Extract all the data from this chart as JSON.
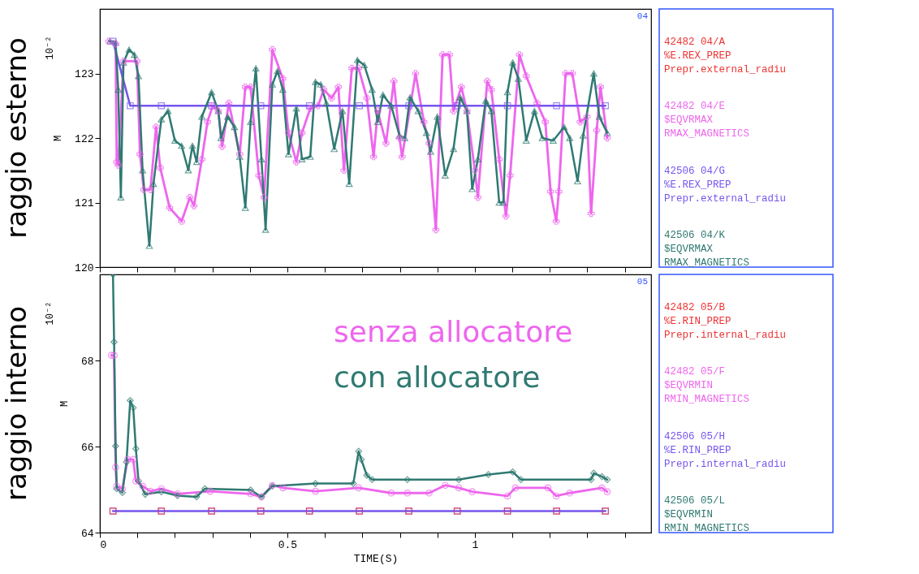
{
  "chart_data": [
    {
      "type": "line",
      "title": "raggio esterno",
      "ylabel": "M",
      "annotations": [
        "10⁻²",
        "04"
      ],
      "xlim": [
        0,
        1.47
      ],
      "xticks": [
        0,
        {
          "value": 0.1,
          "label": null
        },
        {
          "value": 0.2,
          "label": null
        },
        {
          "value": 0.3,
          "label": null
        },
        {
          "value": 0.4,
          "label": null
        },
        0.5,
        {
          "value": 0.6,
          "label": null
        },
        {
          "value": 0.7,
          "label": null
        },
        {
          "value": 0.8,
          "label": null
        },
        {
          "value": 0.9,
          "label": null
        },
        1,
        {
          "value": 1.1,
          "label": null
        },
        {
          "value": 1.2,
          "label": null
        },
        {
          "value": 1.3,
          "label": null
        },
        {
          "value": 1.4,
          "label": null
        }
      ],
      "ylim": [
        120,
        124
      ],
      "yticks": [
        120,
        121,
        122,
        123
      ],
      "tick_labels": "y",
      "grid": false,
      "legend": "right",
      "series": [
        {
          "name": "42482 04/A\n%E.REX_PREP\nPrepr.external_radiu",
          "color": "#ee3333"
        },
        {
          "name": "42482 04/E\n$EQVRMAX\nRMAX_MAGNETICS",
          "color": "#ee66ee",
          "marker": "cross",
          "x": [
            0.024,
            0.042,
            0.045,
            0.049,
            0.063,
            0.099,
            0.107,
            0.117,
            0.135,
            0.15,
            0.161,
            0.186,
            0.218,
            0.24,
            0.251,
            0.272,
            0.287,
            0.301,
            0.316,
            0.326,
            0.344,
            0.373,
            0.388,
            0.402,
            0.424,
            0.438,
            0.46,
            0.488,
            0.503,
            0.524,
            0.539,
            0.561,
            0.582,
            0.597,
            0.618,
            0.636,
            0.651,
            0.672,
            0.69,
            0.712,
            0.73,
            0.741,
            0.763,
            0.784,
            0.799,
            0.806,
            0.842,
            0.864,
            0.878,
            0.896,
            0.914,
            0.932,
            0.943,
            0.964,
            0.979,
            1.0,
            1.008,
            1.033,
            1.044,
            1.065,
            1.083,
            1.094,
            1.119,
            1.137,
            1.166,
            1.188,
            1.202,
            1.217,
            1.224,
            1.242,
            1.26,
            1.281,
            1.299,
            1.31,
            1.325,
            1.335,
            1.353
          ],
          "values": [
            123.5,
            123.46,
            121.63,
            121.58,
            123.19,
            123.19,
            121.75,
            121.2,
            121.2,
            122.17,
            121.54,
            120.92,
            120.71,
            121.08,
            120.95,
            121.67,
            122.25,
            122.5,
            122.42,
            121.87,
            122.54,
            121.75,
            122.79,
            122.79,
            121.42,
            121.08,
            123.37,
            122.92,
            122.08,
            121.63,
            122.08,
            122.46,
            122.5,
            122.75,
            122.62,
            122.79,
            121.5,
            123.08,
            123.08,
            122.62,
            121.71,
            122.42,
            121.92,
            122.88,
            122.0,
            121.71,
            123.0,
            122.25,
            121.92,
            120.58,
            123.29,
            123.29,
            122.42,
            122.79,
            122.42,
            121.5,
            121.08,
            122.88,
            122.75,
            121.67,
            120.79,
            121.42,
            123.29,
            122.96,
            122.54,
            122.25,
            121.17,
            120.71,
            121.17,
            123.0,
            123.0,
            122.25,
            122.33,
            120.83,
            122.12,
            122.79,
            122.0
          ]
        },
        {
          "name": "42506 04/G\n%E.REX_PREP\nPrepr.external_radiu",
          "color": "#7755ee",
          "marker": "square",
          "x": [
            0.035,
            0.081,
            0.164,
            0.298,
            0.429,
            0.559,
            0.692,
            0.824,
            0.953,
            1.087,
            1.218,
            1.348
          ],
          "values": [
            123.5,
            122.5,
            122.5,
            122.5,
            122.5,
            122.5,
            122.5,
            122.5,
            122.5,
            122.5,
            122.5,
            122.5
          ]
        },
        {
          "name": "42506 04/K\n$EQVRMAX\nRMAX_MAGNETICS",
          "color": "#2f7a72",
          "marker": "triangle",
          "x": [
            0.027,
            0.042,
            0.049,
            0.056,
            0.063,
            0.078,
            0.092,
            0.103,
            0.114,
            0.132,
            0.143,
            0.164,
            0.182,
            0.2,
            0.218,
            0.236,
            0.247,
            0.258,
            0.272,
            0.298,
            0.316,
            0.323,
            0.341,
            0.359,
            0.373,
            0.388,
            0.402,
            0.416,
            0.431,
            0.442,
            0.46,
            0.474,
            0.488,
            0.503,
            0.524,
            0.539,
            0.561,
            0.575,
            0.589,
            0.604,
            0.625,
            0.647,
            0.665,
            0.687,
            0.705,
            0.726,
            0.741,
            0.755,
            0.777,
            0.799,
            0.813,
            0.827,
            0.849,
            0.871,
            0.882,
            0.9,
            0.921,
            0.943,
            0.961,
            0.979,
            0.993,
            1.008,
            1.029,
            1.044,
            1.065,
            1.076,
            1.087,
            1.101,
            1.116,
            1.137,
            1.159,
            1.18,
            1.209,
            1.238,
            1.253,
            1.274,
            1.289,
            1.317,
            1.332,
            1.353
          ],
          "values": [
            123.5,
            123.48,
            122.75,
            121.08,
            123.17,
            123.37,
            123.29,
            122.96,
            121.5,
            120.33,
            121.29,
            122.29,
            122.42,
            121.96,
            121.88,
            121.5,
            121.88,
            121.63,
            122.33,
            122.71,
            122.42,
            122.0,
            122.33,
            122.17,
            121.71,
            120.92,
            122.25,
            123.08,
            121.67,
            120.58,
            122.83,
            123.04,
            122.75,
            121.75,
            122.46,
            121.67,
            121.71,
            122.87,
            122.83,
            122.54,
            121.83,
            122.42,
            121.29,
            123.21,
            123.13,
            122.75,
            122.25,
            122.67,
            122.5,
            122.04,
            122.0,
            122.63,
            122.42,
            122.08,
            121.79,
            122.33,
            121.42,
            121.83,
            122.63,
            122.42,
            121.21,
            121.67,
            122.58,
            122.42,
            121.0,
            121.0,
            122.71,
            123.17,
            122.92,
            121.96,
            122.42,
            122.0,
            121.96,
            122.17,
            122.0,
            121.33,
            122.04,
            123.0,
            122.33,
            122.08
          ]
        }
      ]
    },
    {
      "type": "line",
      "title": "raggio interno",
      "xlabel": "TIME(S)",
      "ylabel": "M",
      "annotations": [
        "10⁻²",
        "05",
        "senza allocatore",
        "con allocatore"
      ],
      "xlim": [
        0,
        1.47
      ],
      "xticks": [
        0,
        {
          "value": 0.1,
          "label": null
        },
        {
          "value": 0.2,
          "label": null
        },
        {
          "value": 0.3,
          "label": null
        },
        {
          "value": 0.4,
          "label": null
        },
        0.5,
        {
          "value": 0.6,
          "label": null
        },
        {
          "value": 0.7,
          "label": null
        },
        {
          "value": 0.8,
          "label": null
        },
        {
          "value": 0.9,
          "label": null
        },
        1,
        {
          "value": 1.1,
          "label": null
        },
        {
          "value": 1.2,
          "label": null
        },
        {
          "value": 1.3,
          "label": null
        },
        {
          "value": 1.4,
          "label": null
        }
      ],
      "ylim": [
        64,
        70
      ],
      "yticks": [
        64,
        66,
        68
      ],
      "grid": false,
      "legend": "right",
      "series": [
        {
          "name": "42482 05/B\n%E.RIN_PREP\nPrepr.internal_radiu",
          "color": "#ee3333",
          "type": "scatter",
          "marker": "square",
          "x": [
            0.035,
            0.164,
            0.298,
            0.429,
            0.559,
            0.692,
            0.824,
            0.953,
            1.087,
            1.218,
            1.348
          ],
          "values": [
            64.5,
            64.5,
            64.5,
            64.5,
            64.5,
            64.5,
            64.5,
            64.5,
            64.5,
            64.5,
            64.5
          ]
        },
        {
          "name": "42482 05/F\n$EQVRMIN\nRMIN_MAGNETICS",
          "color": "#ee66ee",
          "marker": "circle",
          "x": [
            0.031,
            0.038,
            0.042,
            0.045,
            0.06,
            0.074,
            0.089,
            0.096,
            0.114,
            0.135,
            0.164,
            0.207,
            0.294,
            0.402,
            0.431,
            0.46,
            0.488,
            0.575,
            0.69,
            0.777,
            0.82,
            0.878,
            0.921,
            0.957,
            0.993,
            1.087,
            1.108,
            1.195,
            1.217,
            1.253,
            1.339,
            1.353
          ],
          "values": [
            68.12,
            68.12,
            65.52,
            65.08,
            65.02,
            65.7,
            65.7,
            65.2,
            65.08,
            64.96,
            65.02,
            64.9,
            64.96,
            64.9,
            64.83,
            65.1,
            65.04,
            64.96,
            65.04,
            64.92,
            64.92,
            64.92,
            65.1,
            65.04,
            64.95,
            64.85,
            65.04,
            65.04,
            64.85,
            64.92,
            65.04,
            64.95
          ]
        },
        {
          "name": "42506 05/H\n%E.RIN_PREP\nPrepr.internal_radiu",
          "color": "#7755ee",
          "marker": "square",
          "x": [
            0.035,
            0.164,
            0.298,
            0.429,
            0.559,
            0.692,
            0.824,
            0.953,
            1.087,
            1.218,
            1.348
          ],
          "values": [
            64.5,
            64.5,
            64.5,
            64.5,
            64.5,
            64.5,
            64.5,
            64.5,
            64.5,
            64.5,
            64.5
          ]
        },
        {
          "name": "42506 05/L\n$EQVRMIN\nRMIN_MAGNETICS",
          "color": "#2f7a72",
          "marker": "diamond",
          "x": [
            0.035,
            0.038,
            0.042,
            0.045,
            0.06,
            0.071,
            0.081,
            0.089,
            0.096,
            0.103,
            0.121,
            0.164,
            0.207,
            0.258,
            0.28,
            0.402,
            0.431,
            0.46,
            0.575,
            0.676,
            0.69,
            0.697,
            0.712,
            0.726,
            0.82,
            0.957,
            1.036,
            1.101,
            1.123,
            1.31,
            1.317,
            1.339,
            1.353
          ],
          "values": [
            70,
            68.43,
            66.01,
            65.02,
            64.93,
            65.64,
            67.07,
            66.9,
            65.95,
            65.2,
            64.89,
            64.95,
            64.86,
            64.83,
            65.02,
            64.99,
            64.83,
            65.08,
            65.14,
            65.14,
            65.89,
            65.7,
            65.33,
            65.23,
            65.23,
            65.23,
            65.35,
            65.41,
            65.23,
            65.23,
            65.38,
            65.3,
            65.23
          ]
        }
      ]
    }
  ]
}
